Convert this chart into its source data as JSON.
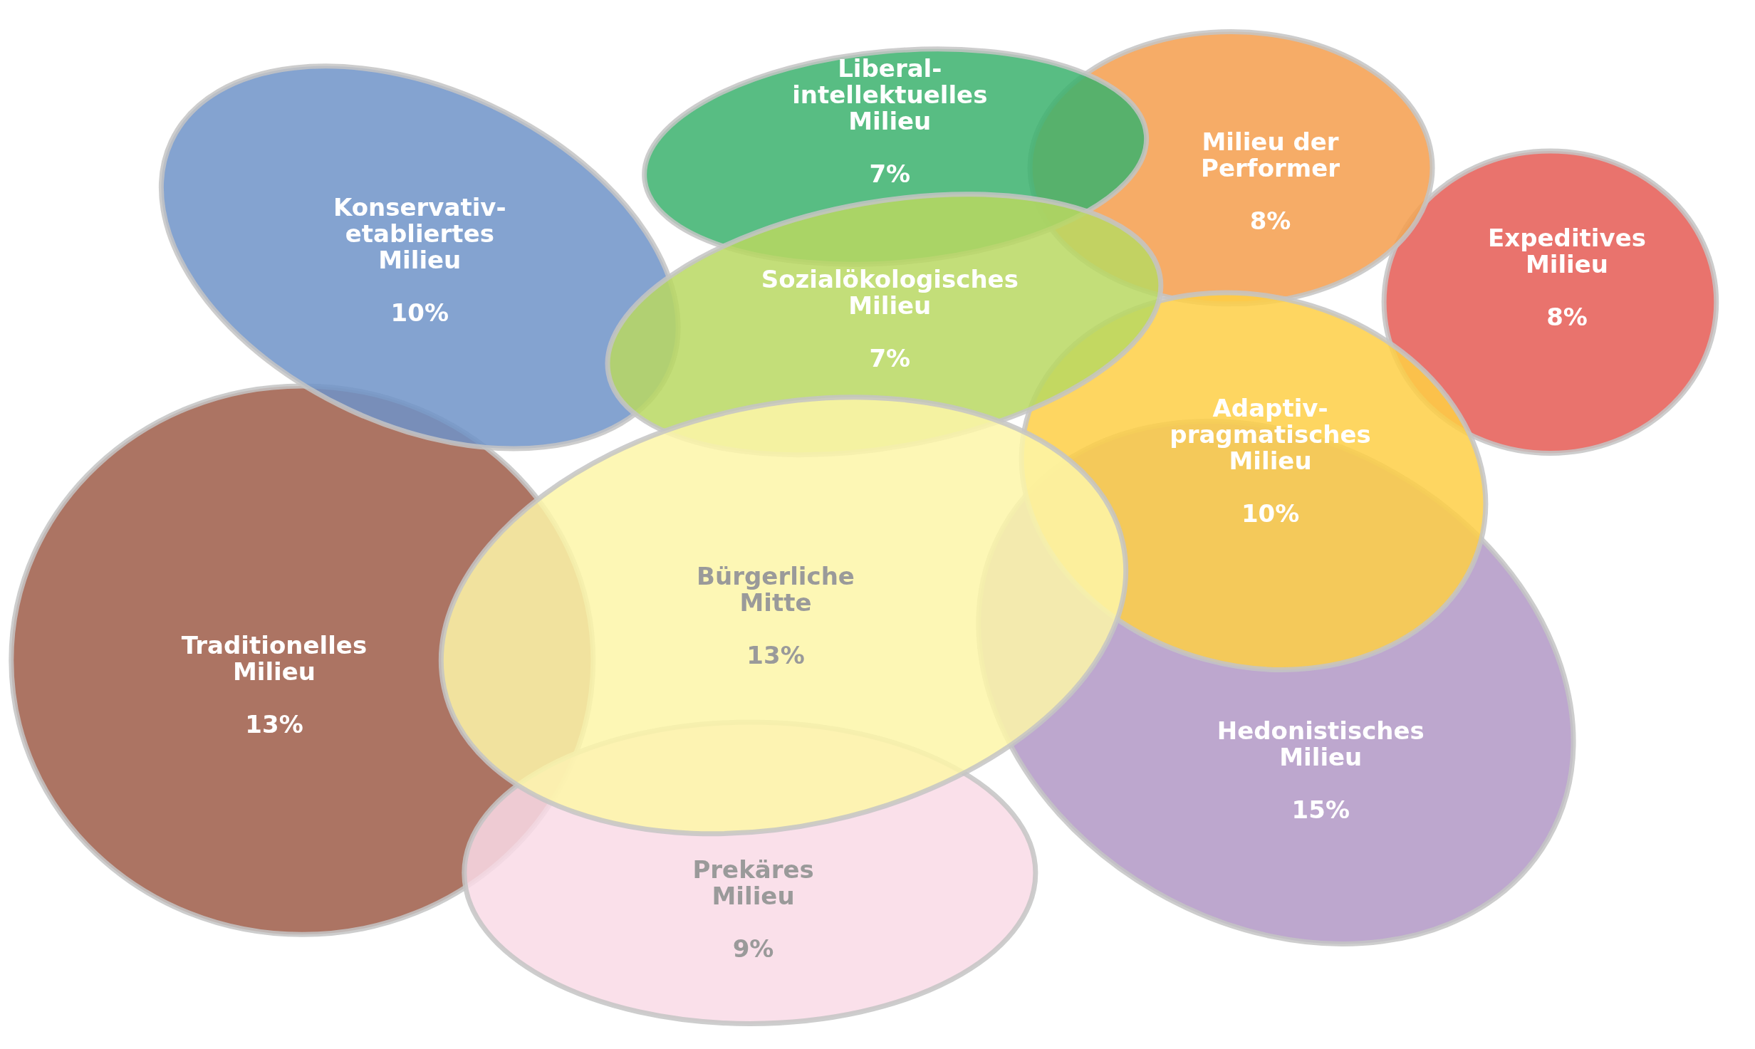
{
  "chart_data": {
    "type": "other",
    "categories": [
      "Konservativ-etabliertes Milieu",
      "Liberal-intellektuelles Milieu",
      "Milieu der Performer",
      "Expeditives Milieu",
      "Sozialökologisches Milieu",
      "Adaptiv-pragmatisches Milieu",
      "Bürgerliche Mitte",
      "Traditionelles Milieu",
      "Prekäres Milieu",
      "Hedonistisches Milieu"
    ],
    "values": [
      10,
      7,
      8,
      8,
      7,
      10,
      13,
      13,
      9,
      15
    ],
    "value_labels": [
      "10%",
      "7%",
      "8%",
      "8%",
      "7%",
      "10%",
      "13%",
      "13%",
      "9%",
      "15%"
    ],
    "colors": [
      "#6f93c8",
      "#3bb26d",
      "#f59d4c",
      "#e55b53",
      "#b9d862",
      "#fecf45",
      "#fdf6a8",
      "#9e5c48",
      "#f9dbe6",
      "#b198c6"
    ]
  }
}
